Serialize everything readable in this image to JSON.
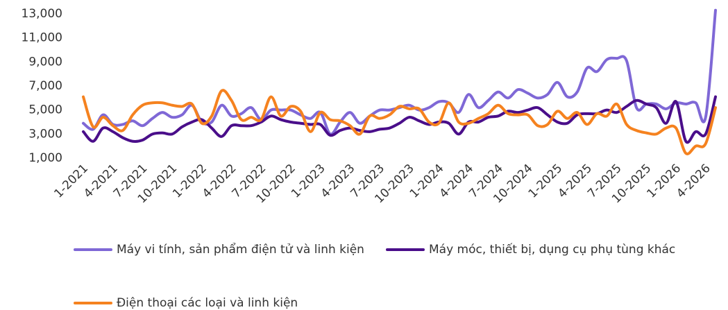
{
  "chart_data": {
    "type": "line",
    "categories": [
      "1-2021",
      null,
      null,
      "4-2021",
      null,
      null,
      "7-2021",
      null,
      null,
      "10-2021",
      null,
      null,
      "1-2022",
      null,
      null,
      "4-2022",
      null,
      null,
      "7-2022",
      null,
      null,
      "10-2022",
      null,
      null,
      "1-2023",
      null,
      null,
      "4-2023",
      null,
      null,
      "7-2023",
      null,
      null,
      "10-2023",
      null,
      null,
      "1-2024",
      null,
      null,
      "4-2024",
      null,
      null,
      "7-2024",
      null,
      null,
      "10-2024",
      null,
      null,
      "1-2025",
      null,
      null,
      "4-2025",
      null,
      null,
      "7-2025",
      null,
      null,
      "10-2025",
      null,
      null,
      "1-2026",
      null,
      null,
      "4-2026",
      null
    ],
    "series": [
      {
        "name": "Máy vi tính, sản phẩm điện tử và linh kiện",
        "color": "#7f68d6",
        "values": [
          3900,
          3400,
          4600,
          3800,
          3800,
          4100,
          3700,
          4300,
          4800,
          4400,
          4600,
          5400,
          4000,
          4000,
          5400,
          4500,
          4700,
          5200,
          4200,
          5000,
          5000,
          5000,
          4600,
          4300,
          4800,
          3000,
          4000,
          4800,
          3900,
          4500,
          5000,
          5000,
          5200,
          5400,
          5000,
          5200,
          5700,
          5600,
          4800,
          6300,
          5200,
          5800,
          6500,
          6000,
          6700,
          6400,
          6000,
          6300,
          7300,
          6100,
          6500,
          8500,
          8200,
          9200,
          9300,
          9100,
          5200,
          5500,
          5500,
          5100,
          5600,
          5500,
          5600,
          4400,
          13300
        ]
      },
      {
        "name": "Máy móc, thiết bị, dụng cụ phụ tùng khác",
        "color": "#4a0e8a",
        "values": [
          3200,
          2400,
          3500,
          3200,
          2700,
          2400,
          2500,
          3000,
          3100,
          3000,
          3600,
          4000,
          4200,
          3500,
          2800,
          3700,
          3700,
          3700,
          4000,
          4500,
          4200,
          4000,
          3900,
          3800,
          3800,
          2900,
          3300,
          3500,
          3300,
          3200,
          3400,
          3500,
          3900,
          4400,
          4100,
          3800,
          4000,
          3900,
          3000,
          4000,
          4000,
          4400,
          4500,
          4900,
          4800,
          5000,
          5200,
          4600,
          4000,
          3900,
          4600,
          4700,
          4700,
          5000,
          4800,
          5300,
          5800,
          5500,
          5200,
          3900,
          5700,
          2400,
          3200,
          3000,
          6100
        ]
      },
      {
        "name": "Điện thoại các loại và linh kiện",
        "color": "#f5821f",
        "values": [
          6100,
          3600,
          4400,
          3700,
          3300,
          4600,
          5400,
          5600,
          5600,
          5400,
          5300,
          5500,
          3900,
          4500,
          6600,
          5800,
          4200,
          4400,
          4200,
          6100,
          4500,
          5300,
          4900,
          3200,
          4800,
          4200,
          4100,
          3700,
          3000,
          4500,
          4300,
          4600,
          5300,
          5100,
          5100,
          4000,
          3900,
          5600,
          4000,
          3900,
          4300,
          4700,
          5400,
          4700,
          4600,
          4600,
          3700,
          3800,
          4900,
          4300,
          4800,
          3800,
          4700,
          4500,
          5500,
          3800,
          3300,
          3100,
          3000,
          3500,
          3500,
          1400,
          2000,
          2200,
          5200
        ]
      }
    ],
    "ylim": [
      1000,
      13000
    ],
    "yticks": [
      {
        "value": 1000,
        "label": "1,000"
      },
      {
        "value": 3000,
        "label": "3,000"
      },
      {
        "value": 5000,
        "label": "5,000"
      },
      {
        "value": 7000,
        "label": "7,000"
      },
      {
        "value": 9000,
        "label": "9,000"
      },
      {
        "value": 11000,
        "label": "11,000"
      },
      {
        "value": 13000,
        "label": "13,000"
      }
    ],
    "grid": false
  }
}
